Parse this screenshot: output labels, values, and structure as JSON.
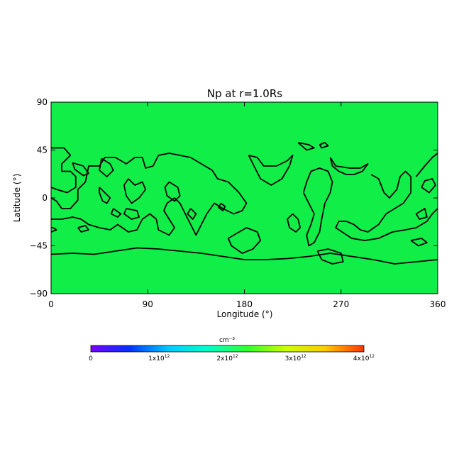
{
  "chart_data": {
    "type": "heatmap",
    "title": "Np at r=1.0Rs",
    "xlabel": "Longitude (°)",
    "ylabel": "Latitude (°)",
    "xlim": [
      0,
      360
    ],
    "ylim": [
      -90,
      90
    ],
    "xticks": [
      "0",
      "90",
      "180",
      "270",
      "360"
    ],
    "yticks": [
      "90",
      "45",
      "0",
      "−45",
      "−90"
    ],
    "field_color": "#11ee48",
    "contour_color": "#000000",
    "grid": false,
    "contours": [
      [
        [
          0,
          47
        ],
        [
          12,
          47
        ],
        [
          18,
          40
        ],
        [
          10,
          32
        ],
        [
          10,
          25
        ],
        [
          18,
          25
        ],
        [
          23,
          20
        ],
        [
          23,
          10
        ],
        [
          15,
          5
        ],
        [
          5,
          8
        ],
        [
          0,
          10
        ]
      ],
      [
        [
          0,
          0
        ],
        [
          5,
          -3
        ],
        [
          10,
          -10
        ],
        [
          18,
          -10
        ],
        [
          25,
          -2
        ],
        [
          25,
          8
        ],
        [
          32,
          15
        ],
        [
          35,
          30
        ],
        [
          45,
          30
        ],
        [
          50,
          38
        ],
        [
          60,
          38
        ],
        [
          70,
          32
        ],
        [
          78,
          38
        ],
        [
          85,
          38
        ],
        [
          88,
          28
        ],
        [
          95,
          30
        ],
        [
          100,
          40
        ],
        [
          110,
          42
        ],
        [
          120,
          40
        ],
        [
          130,
          38
        ],
        [
          140,
          32
        ],
        [
          150,
          26
        ],
        [
          155,
          18
        ],
        [
          165,
          15
        ],
        [
          175,
          5
        ],
        [
          182,
          -5
        ],
        [
          178,
          -12
        ],
        [
          170,
          -15
        ],
        [
          160,
          -10
        ],
        [
          152,
          -5
        ],
        [
          145,
          -15
        ],
        [
          140,
          -25
        ],
        [
          135,
          -35
        ],
        [
          130,
          -25
        ],
        [
          125,
          -15
        ],
        [
          120,
          -5
        ],
        [
          115,
          0
        ],
        [
          108,
          -5
        ],
        [
          105,
          -12
        ],
        [
          110,
          -20
        ],
        [
          115,
          -28
        ],
        [
          110,
          -35
        ],
        [
          100,
          -30
        ],
        [
          98,
          -20
        ],
        [
          92,
          -15
        ],
        [
          85,
          -20
        ],
        [
          80,
          -30
        ],
        [
          72,
          -32
        ],
        [
          62,
          -25
        ],
        [
          55,
          -30
        ],
        [
          45,
          -28
        ],
        [
          35,
          -25
        ],
        [
          28,
          -20
        ],
        [
          20,
          -18
        ],
        [
          10,
          -20
        ],
        [
          0,
          -20
        ]
      ],
      [
        [
          20,
          33
        ],
        [
          30,
          30
        ],
        [
          35,
          23
        ],
        [
          30,
          21
        ],
        [
          22,
          27
        ],
        [
          20,
          33
        ]
      ],
      [
        [
          47,
          37
        ],
        [
          55,
          32
        ],
        [
          58,
          26
        ],
        [
          52,
          20
        ],
        [
          45,
          26
        ],
        [
          47,
          37
        ]
      ],
      [
        [
          45,
          10
        ],
        [
          50,
          5
        ],
        [
          55,
          0
        ],
        [
          52,
          -5
        ],
        [
          48,
          -3
        ],
        [
          45,
          5
        ],
        [
          45,
          10
        ]
      ],
      [
        [
          72,
          18
        ],
        [
          78,
          12
        ],
        [
          85,
          15
        ],
        [
          88,
          8
        ],
        [
          82,
          0
        ],
        [
          75,
          -5
        ],
        [
          70,
          2
        ],
        [
          68,
          12
        ],
        [
          72,
          18
        ]
      ],
      [
        [
          70,
          -10
        ],
        [
          80,
          -12
        ],
        [
          82,
          -18
        ],
        [
          75,
          -20
        ],
        [
          68,
          -15
        ],
        [
          70,
          -10
        ]
      ],
      [
        [
          58,
          -10
        ],
        [
          65,
          -15
        ],
        [
          62,
          -18
        ],
        [
          56,
          -15
        ],
        [
          58,
          -10
        ]
      ],
      [
        [
          110,
          15
        ],
        [
          118,
          10
        ],
        [
          120,
          2
        ],
        [
          115,
          -3
        ],
        [
          108,
          2
        ],
        [
          106,
          10
        ],
        [
          110,
          15
        ]
      ],
      [
        [
          130,
          -10
        ],
        [
          135,
          -15
        ],
        [
          132,
          -20
        ],
        [
          127,
          -15
        ],
        [
          130,
          -10
        ]
      ],
      [
        [
          158,
          -5
        ],
        [
          162,
          -8
        ],
        [
          160,
          -12
        ],
        [
          156,
          -9
        ],
        [
          158,
          -5
        ]
      ],
      [
        [
          170,
          -35
        ],
        [
          182,
          -28
        ],
        [
          192,
          -32
        ],
        [
          195,
          -40
        ],
        [
          188,
          -48
        ],
        [
          178,
          -52
        ],
        [
          168,
          -45
        ],
        [
          165,
          -38
        ],
        [
          170,
          -35
        ]
      ],
      [
        [
          184,
          40
        ],
        [
          192,
          38
        ],
        [
          198,
          30
        ],
        [
          210,
          30
        ],
        [
          220,
          35
        ],
        [
          225,
          40
        ],
        [
          222,
          30
        ],
        [
          215,
          18
        ],
        [
          205,
          12
        ],
        [
          195,
          18
        ],
        [
          190,
          28
        ],
        [
          184,
          40
        ]
      ],
      [
        [
          225,
          -15
        ],
        [
          230,
          -20
        ],
        [
          232,
          -28
        ],
        [
          228,
          -32
        ],
        [
          222,
          -28
        ],
        [
          220,
          -20
        ],
        [
          225,
          -15
        ]
      ],
      [
        [
          235,
          5
        ],
        [
          240,
          -5
        ],
        [
          245,
          -15
        ],
        [
          242,
          -25
        ],
        [
          238,
          -35
        ],
        [
          240,
          -45
        ],
        [
          245,
          -42
        ],
        [
          250,
          -32
        ],
        [
          252,
          -20
        ],
        [
          255,
          -5
        ],
        [
          260,
          5
        ],
        [
          262,
          15
        ],
        [
          258,
          25
        ],
        [
          250,
          28
        ],
        [
          242,
          25
        ],
        [
          238,
          15
        ],
        [
          235,
          5
        ]
      ],
      [
        [
          230,
          52
        ],
        [
          240,
          50
        ],
        [
          245,
          47
        ],
        [
          238,
          45
        ],
        [
          230,
          52
        ]
      ],
      [
        [
          250,
          50
        ],
        [
          255,
          52
        ],
        [
          258,
          49
        ],
        [
          252,
          47
        ],
        [
          250,
          50
        ]
      ],
      [
        [
          260,
          38
        ],
        [
          265,
          30
        ],
        [
          278,
          28
        ],
        [
          288,
          28
        ],
        [
          295,
          32
        ],
        [
          290,
          25
        ],
        [
          282,
          22
        ],
        [
          275,
          22
        ],
        [
          268,
          25
        ],
        [
          262,
          30
        ],
        [
          260,
          38
        ]
      ],
      [
        [
          248,
          -50
        ],
        [
          258,
          -48
        ],
        [
          270,
          -52
        ],
        [
          272,
          -60
        ],
        [
          262,
          -62
        ],
        [
          252,
          -58
        ],
        [
          248,
          -50
        ]
      ],
      [
        [
          298,
          22
        ],
        [
          305,
          18
        ],
        [
          310,
          5
        ],
        [
          315,
          0
        ],
        [
          322,
          8
        ],
        [
          325,
          20
        ],
        [
          330,
          25
        ],
        [
          335,
          20
        ],
        [
          335,
          5
        ],
        [
          328,
          -5
        ],
        [
          320,
          -10
        ],
        [
          312,
          -15
        ],
        [
          305,
          -25
        ],
        [
          295,
          -32
        ],
        [
          288,
          -30
        ],
        [
          282,
          -25
        ],
        [
          275,
          -22
        ],
        [
          268,
          -22
        ],
        [
          265,
          -28
        ],
        [
          280,
          -38
        ],
        [
          292,
          -40
        ],
        [
          305,
          -38
        ],
        [
          318,
          -32
        ],
        [
          330,
          -30
        ],
        [
          340,
          -28
        ],
        [
          350,
          -22
        ],
        [
          355,
          -15
        ],
        [
          360,
          -10
        ]
      ],
      [
        [
          0,
          -32
        ],
        [
          5,
          -30
        ],
        [
          2,
          -28
        ],
        [
          0,
          -28
        ]
      ],
      [
        [
          25,
          -28
        ],
        [
          32,
          -26
        ],
        [
          35,
          -30
        ],
        [
          28,
          -32
        ],
        [
          25,
          -28
        ]
      ],
      [
        [
          340,
          -15
        ],
        [
          348,
          -10
        ],
        [
          350,
          -18
        ],
        [
          343,
          -20
        ],
        [
          340,
          -15
        ]
      ],
      [
        [
          335,
          -40
        ],
        [
          345,
          -38
        ],
        [
          350,
          -42
        ],
        [
          342,
          -45
        ],
        [
          335,
          -40
        ]
      ],
      [
        [
          340,
          20
        ],
        [
          348,
          30
        ],
        [
          355,
          38
        ],
        [
          360,
          42
        ]
      ],
      [
        [
          345,
          10
        ],
        [
          352,
          5
        ],
        [
          358,
          12
        ],
        [
          355,
          18
        ],
        [
          348,
          16
        ],
        [
          345,
          10
        ]
      ],
      [
        [
          0,
          -53
        ],
        [
          20,
          -52
        ],
        [
          40,
          -53
        ],
        [
          60,
          -50
        ],
        [
          80,
          -47
        ],
        [
          100,
          -48
        ],
        [
          120,
          -50
        ],
        [
          140,
          -52
        ],
        [
          160,
          -55
        ],
        [
          180,
          -58
        ],
        [
          200,
          -58
        ],
        [
          220,
          -57
        ],
        [
          240,
          -55
        ],
        [
          260,
          -52
        ],
        [
          280,
          -55
        ],
        [
          300,
          -58
        ],
        [
          320,
          -62
        ],
        [
          340,
          -60
        ],
        [
          360,
          -58
        ]
      ]
    ],
    "colorbar": {
      "label": "cm⁻³",
      "min": 0,
      "max": 4000000000000.0,
      "ticks": [
        {
          "mant": "0",
          "exp": ""
        },
        {
          "mant": "1x10",
          "exp": "12"
        },
        {
          "mant": "2x10",
          "exp": "12"
        },
        {
          "mant": "3x10",
          "exp": "12"
        },
        {
          "mant": "4x10",
          "exp": "12"
        }
      ],
      "colors": [
        "#7a00ff",
        "#0033ff",
        "#00ccff",
        "#00ffcc",
        "#33ff33",
        "#ccff00",
        "#ffcc00",
        "#ff3300"
      ]
    }
  }
}
